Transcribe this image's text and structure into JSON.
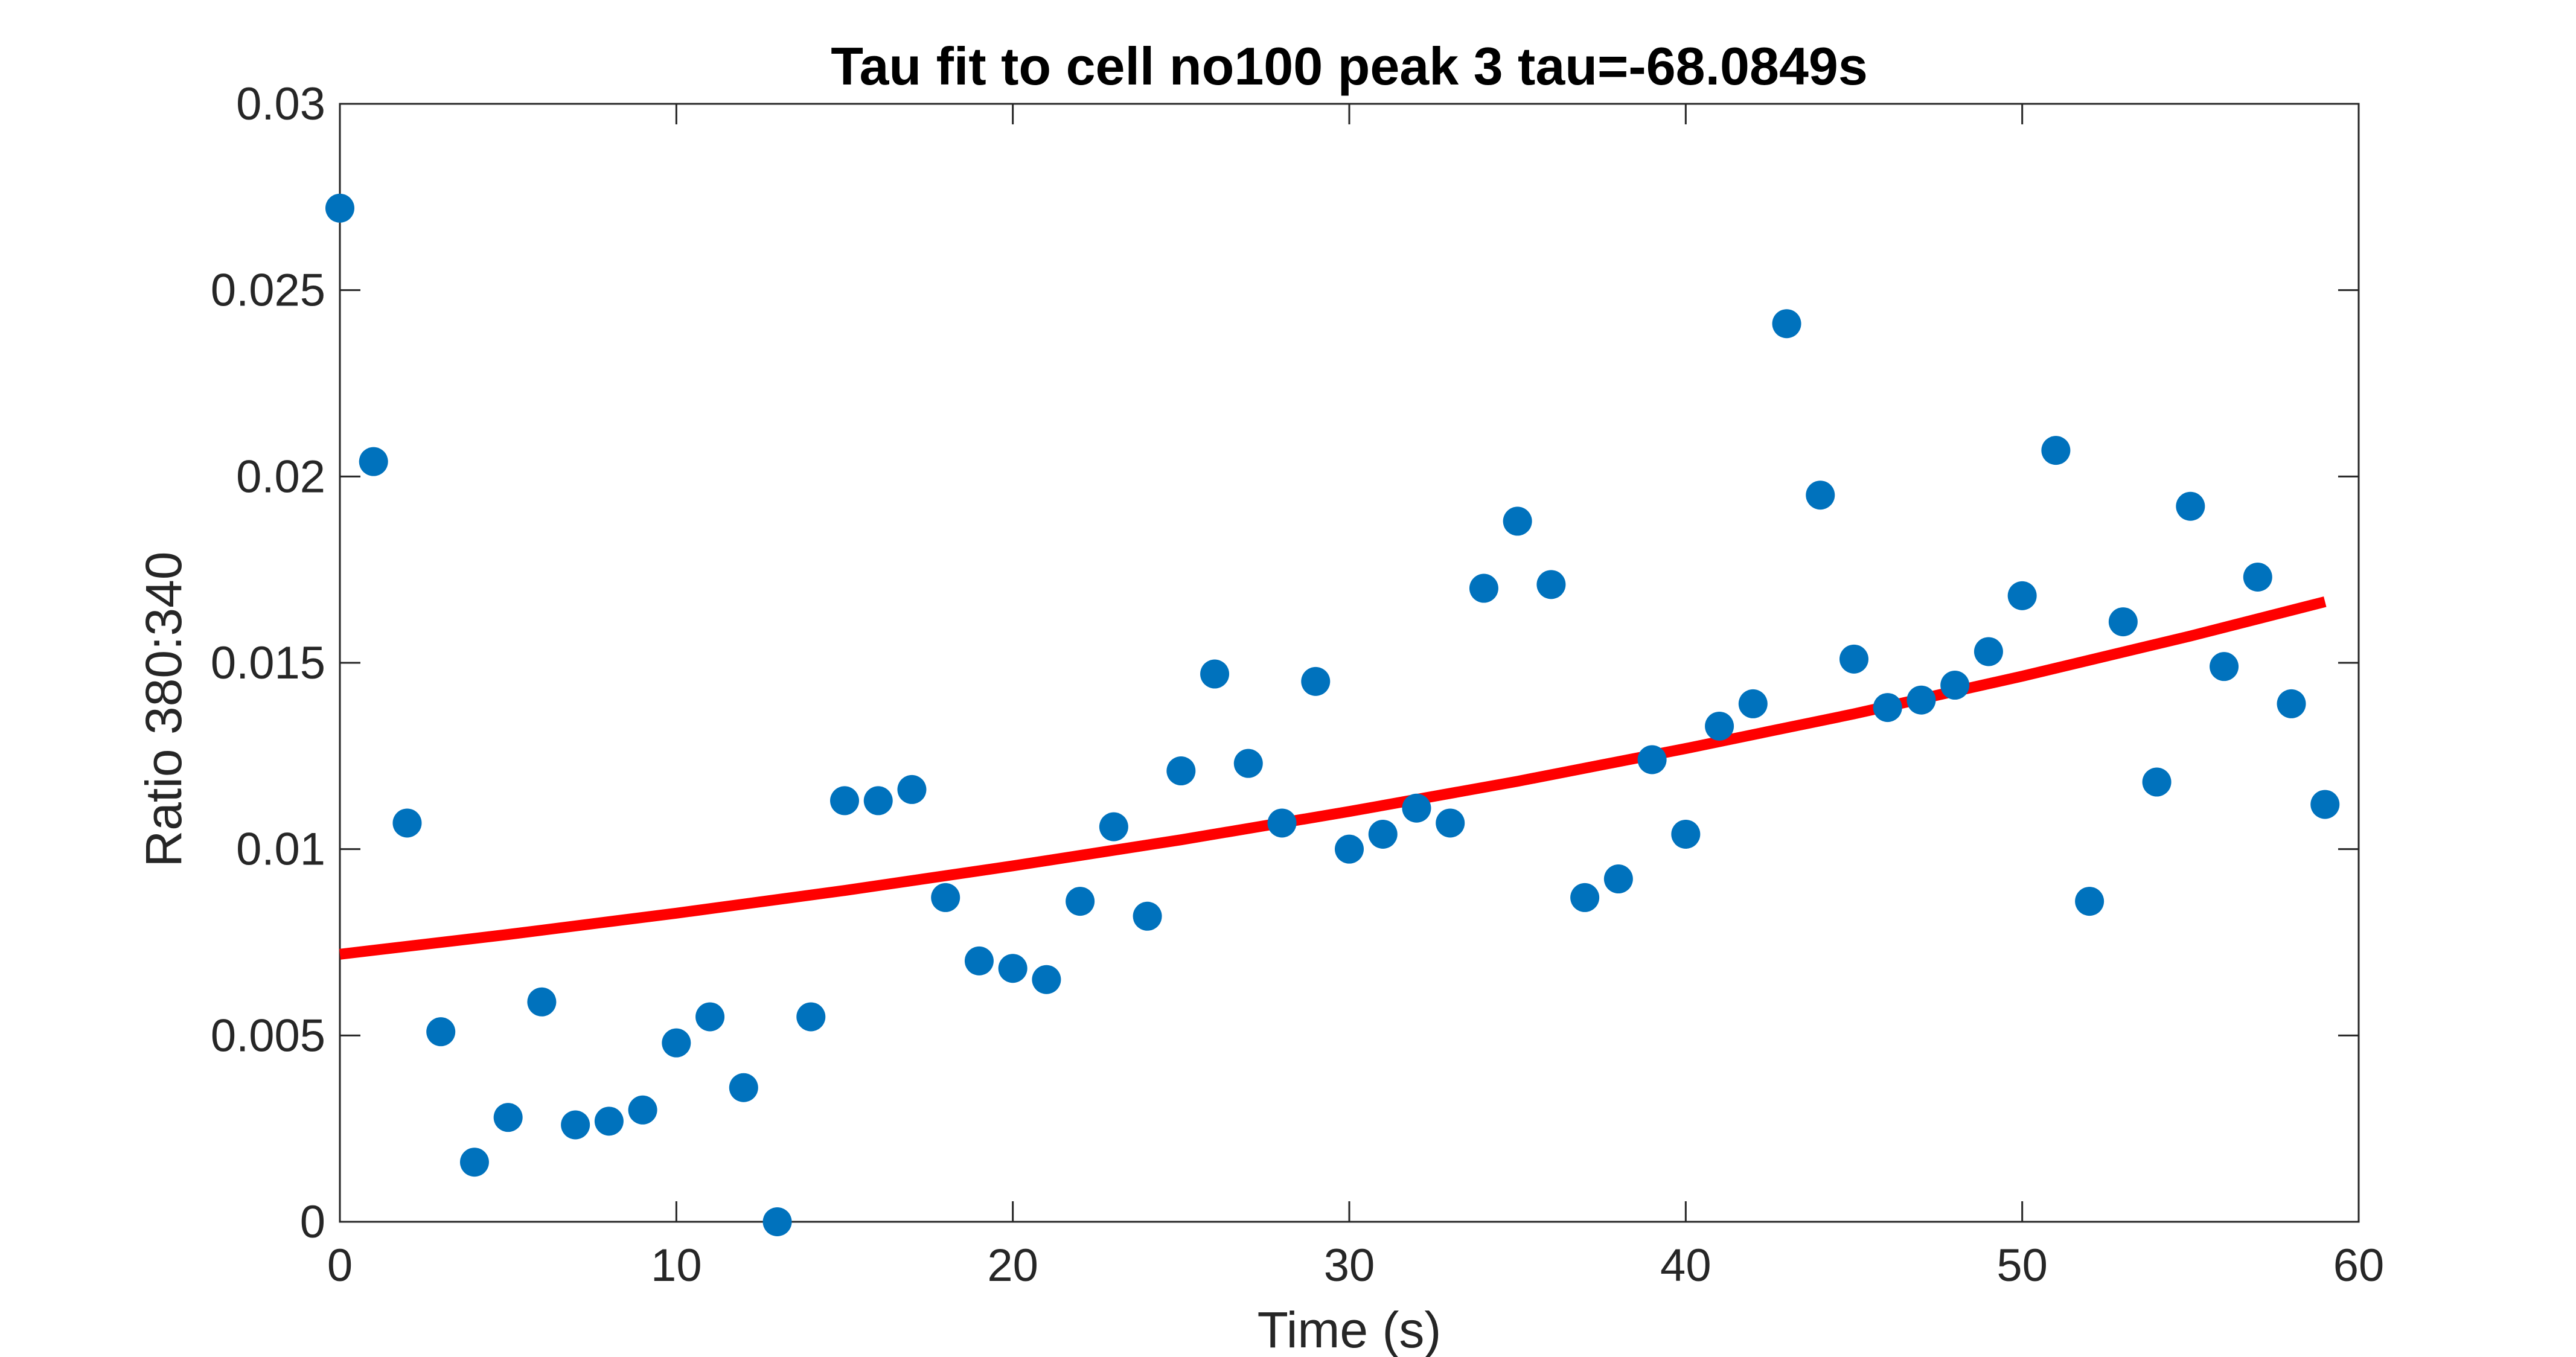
{
  "chart_data": {
    "type": "scatter",
    "title": "Tau fit to cell no100 peak 3 tau=-68.0849s",
    "xlabel": "Time (s)",
    "ylabel": "Ratio 380:340",
    "xlim": [
      0,
      60
    ],
    "ylim": [
      0,
      0.03
    ],
    "xticks": [
      0,
      10,
      20,
      30,
      40,
      50,
      60
    ],
    "xtick_labels": [
      "0",
      "10",
      "20",
      "30",
      "40",
      "50",
      "60"
    ],
    "yticks": [
      0,
      0.005,
      0.01,
      0.015,
      0.02,
      0.025,
      0.03
    ],
    "ytick_labels": [
      "0",
      "0.005",
      "0.01",
      "0.015",
      "0.02",
      "0.025",
      "0.03"
    ],
    "grid": false,
    "box": true,
    "series": [
      {
        "kind": "scatter",
        "color": "#0072BD",
        "x": [
          0,
          1,
          2,
          3,
          4,
          5,
          6,
          7,
          8,
          9,
          10,
          11,
          12,
          13,
          14,
          15,
          16,
          17,
          18,
          19,
          20,
          21,
          22,
          23,
          24,
          25,
          26,
          27,
          28,
          29,
          30,
          31,
          32,
          33,
          34,
          35,
          36,
          37,
          38,
          39,
          40,
          41,
          42,
          43,
          44,
          45,
          46,
          47,
          48,
          49,
          50,
          51,
          52,
          53,
          54,
          55,
          56,
          57,
          58,
          59
        ],
        "y": [
          0.0272,
          0.0204,
          0.0107,
          0.0051,
          0.0016,
          0.0028,
          0.0059,
          0.0026,
          0.0027,
          0.003,
          0.0048,
          0.0055,
          0.0036,
          0.0,
          0.0055,
          0.0113,
          0.0113,
          0.0116,
          0.0087,
          0.007,
          0.0068,
          0.0065,
          0.0086,
          0.0106,
          0.0082,
          0.0121,
          0.0147,
          0.0123,
          0.0107,
          0.0145,
          0.01,
          0.0104,
          0.0111,
          0.0107,
          0.017,
          0.0188,
          0.0171,
          0.0087,
          0.0092,
          0.0124,
          0.0104,
          0.0133,
          0.0139,
          0.0241,
          0.0195,
          0.0151,
          0.0138,
          0.014,
          0.0144,
          0.0153,
          0.0168,
          0.0207,
          0.0086,
          0.0161,
          0.0118,
          0.0192,
          0.0149,
          0.0173,
          0.0139,
          0.0112
        ]
      },
      {
        "kind": "line",
        "color": "#FF0000",
        "x": [
          0,
          5,
          10,
          15,
          20,
          25,
          30,
          35,
          40,
          45,
          50,
          55,
          59
        ],
        "y": [
          0.00718,
          0.00771,
          0.00828,
          0.00889,
          0.00955,
          0.01025,
          0.01101,
          0.01182,
          0.0127,
          0.01363,
          0.01464,
          0.01572,
          0.01664
        ]
      }
    ]
  }
}
